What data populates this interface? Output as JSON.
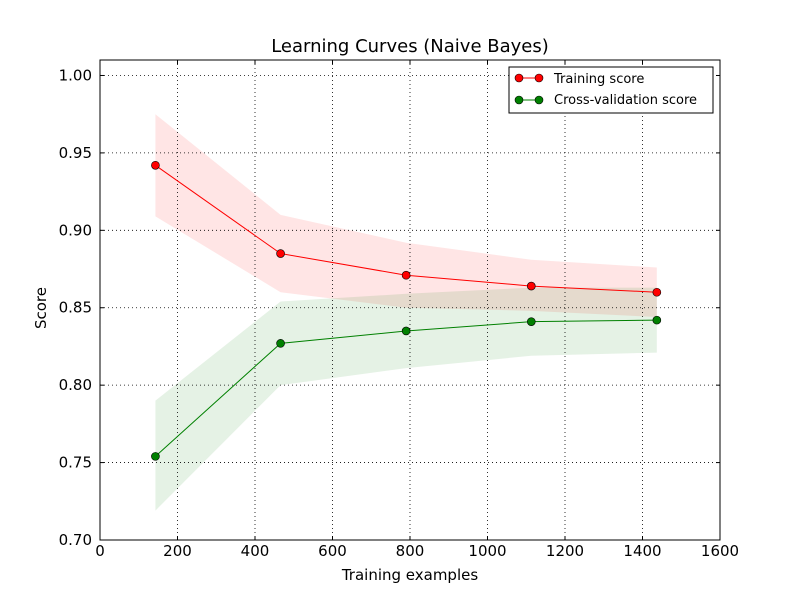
{
  "chart_data": {
    "type": "line",
    "title": "Learning Curves (Naive Bayes)",
    "xlabel": "Training examples",
    "ylabel": "Score",
    "xlim": [
      0,
      1600
    ],
    "ylim": [
      0.7,
      1.01
    ],
    "xticks": [
      0,
      200,
      400,
      600,
      800,
      1000,
      1200,
      1400,
      1600
    ],
    "xtick_labels": [
      "0",
      "200",
      "400",
      "600",
      "800",
      "1000",
      "1200",
      "1400",
      "1600"
    ],
    "yticks": [
      0.7,
      0.75,
      0.8,
      0.85,
      0.9,
      0.95,
      1.0
    ],
    "ytick_labels": [
      "0.70",
      "0.75",
      "0.80",
      "0.85",
      "0.90",
      "0.95",
      "1.00"
    ],
    "grid": true,
    "legend_position": "top-right",
    "x": [
      143,
      466,
      790,
      1113,
      1437
    ],
    "series": [
      {
        "name": "Training score",
        "color": "#ff0000",
        "band_color": "#ff0000",
        "values": [
          0.942,
          0.885,
          0.871,
          0.864,
          0.86
        ],
        "band_lower": [
          0.909,
          0.86,
          0.85,
          0.848,
          0.844
        ],
        "band_upper": [
          0.975,
          0.91,
          0.892,
          0.881,
          0.876
        ]
      },
      {
        "name": "Cross-validation score",
        "color": "#008000",
        "band_color": "#008000",
        "values": [
          0.754,
          0.827,
          0.835,
          0.841,
          0.842
        ],
        "band_lower": [
          0.719,
          0.8,
          0.811,
          0.819,
          0.821
        ],
        "band_upper": [
          0.79,
          0.854,
          0.859,
          0.863,
          0.863
        ]
      }
    ]
  }
}
